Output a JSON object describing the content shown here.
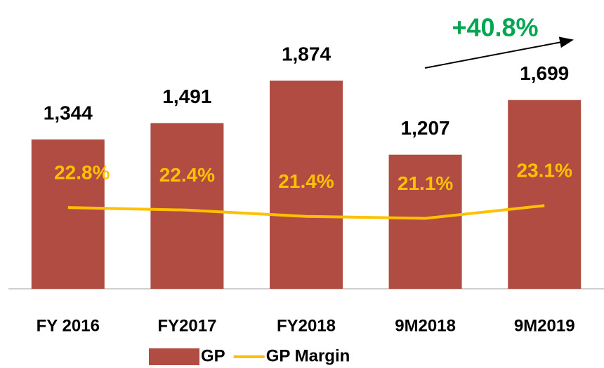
{
  "chart_data": {
    "type": "bar+line",
    "categories": [
      "FY 2016",
      "FY2017",
      "FY2018",
      "9M2018",
      "9M2019"
    ],
    "series": [
      {
        "name": "GP",
        "type": "bar",
        "color": "#b04c41",
        "values": [
          1344,
          1491,
          1874,
          1207,
          1699
        ],
        "value_labels": [
          "1,344",
          "1,491",
          "1,874",
          "1,207",
          "1,699"
        ]
      },
      {
        "name": "GP Margin",
        "type": "line",
        "axis": "y2",
        "color": "#ffc000",
        "values": [
          22.8,
          22.4,
          21.4,
          21.1,
          23.1
        ],
        "value_labels": [
          "22.8%",
          "22.4%",
          "21.4%",
          "21.1%",
          "23.1%"
        ]
      }
    ],
    "ylim": [
      0,
      2000
    ],
    "y2lim": [
      10,
      45
    ],
    "annotations": [
      {
        "text": "+40.8%",
        "color": "#00a650"
      }
    ],
    "legend": "bottom"
  }
}
